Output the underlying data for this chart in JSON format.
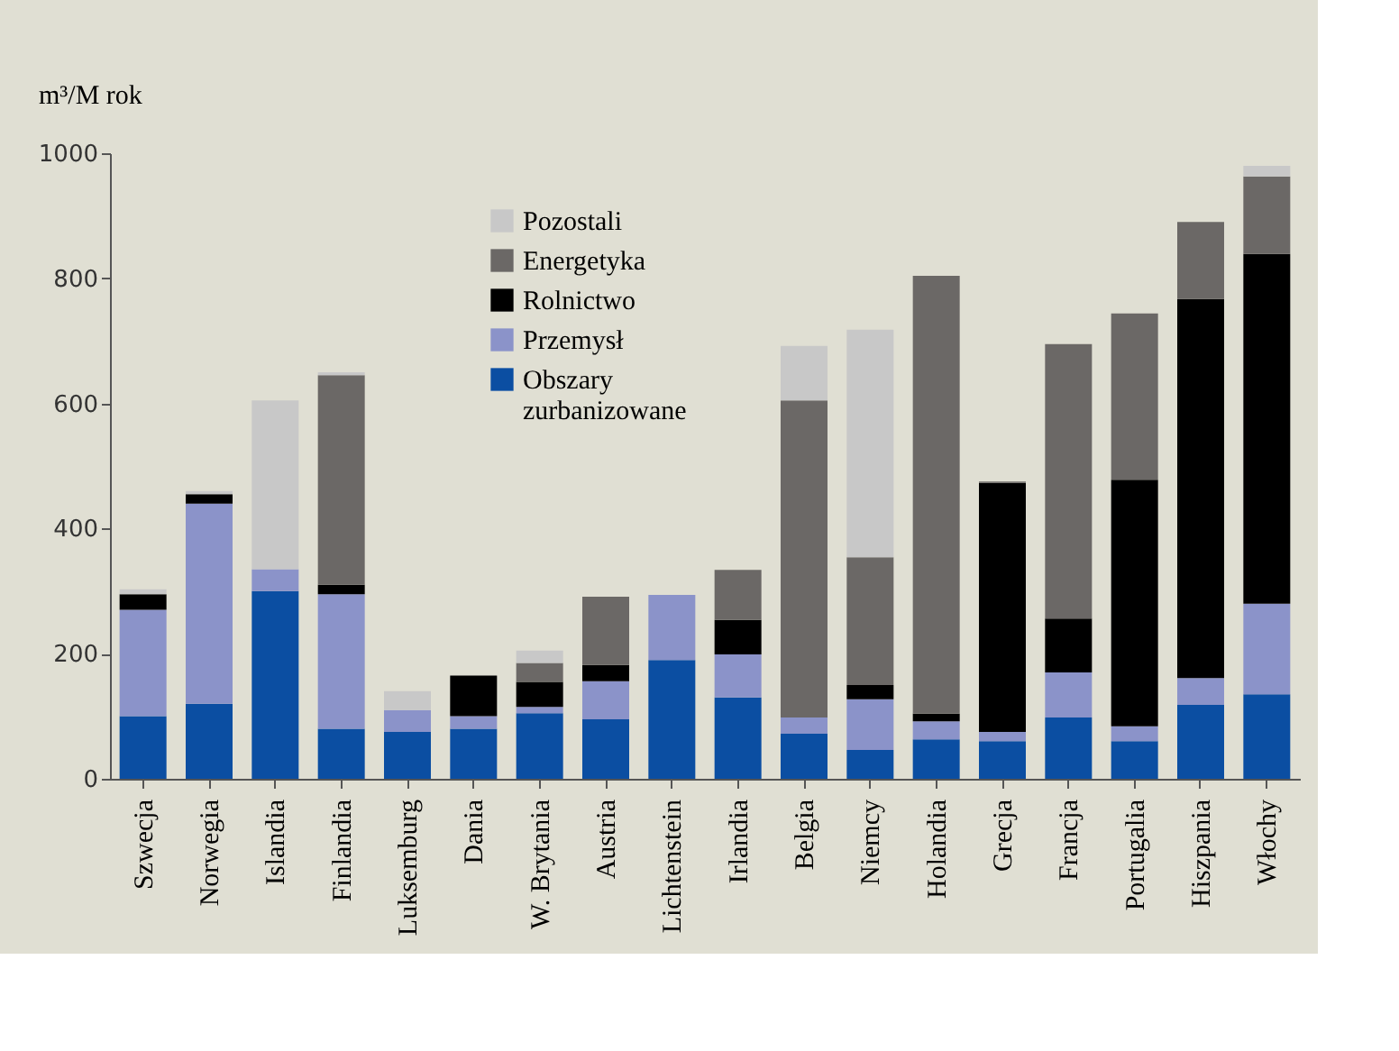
{
  "chart_data": {
    "type": "bar",
    "stacked": true,
    "ylabel": "m³/M rok",
    "categories": [
      "Szwecja",
      "Norwegia",
      "Islandia",
      "Finlandia",
      "Luksemburg",
      "Dania",
      "W. Brytania",
      "Austria",
      "Lichtenstein",
      "Irlandia",
      "Belgia",
      "Niemcy",
      "Holandia",
      "Grecja",
      "Francja",
      "Portugalia",
      "Hiszpania",
      "Włochy"
    ],
    "series": [
      {
        "name": "Obszary zurbanizowane",
        "color": "#0b4ea2",
        "values": [
          100,
          120,
          300,
          80,
          75,
          80,
          105,
          95,
          190,
          130,
          72,
          46,
          63,
          60,
          98,
          60,
          118,
          135
        ]
      },
      {
        "name": "Przemysł",
        "color": "#8b93c9",
        "values": [
          170,
          320,
          35,
          215,
          35,
          20,
          10,
          61,
          104,
          69,
          26,
          81,
          29,
          15,
          72,
          24,
          43,
          145
        ]
      },
      {
        "name": "Rolnictwo",
        "color": "#000000",
        "values": [
          25,
          15,
          0,
          15,
          0,
          65,
          40,
          26,
          0,
          55,
          0,
          23,
          12,
          398,
          86,
          394,
          606,
          559
        ]
      },
      {
        "name": "Energetyka",
        "color": "#6b6866",
        "values": [
          0,
          0,
          0,
          335,
          0,
          0,
          30,
          109,
          0,
          80,
          507,
          204,
          700,
          2,
          439,
          266,
          123,
          124
        ]
      },
      {
        "name": "Pozostali",
        "color": "#c8c8c8",
        "values": [
          8,
          5,
          270,
          5,
          30,
          0,
          20,
          0,
          0,
          0,
          87,
          364,
          0,
          0,
          0,
          0,
          0,
          17
        ]
      }
    ],
    "ylim": [
      0,
      1000
    ],
    "yticks": [
      0,
      200,
      400,
      600,
      800,
      1000
    ],
    "grid": false,
    "legend": "top"
  }
}
